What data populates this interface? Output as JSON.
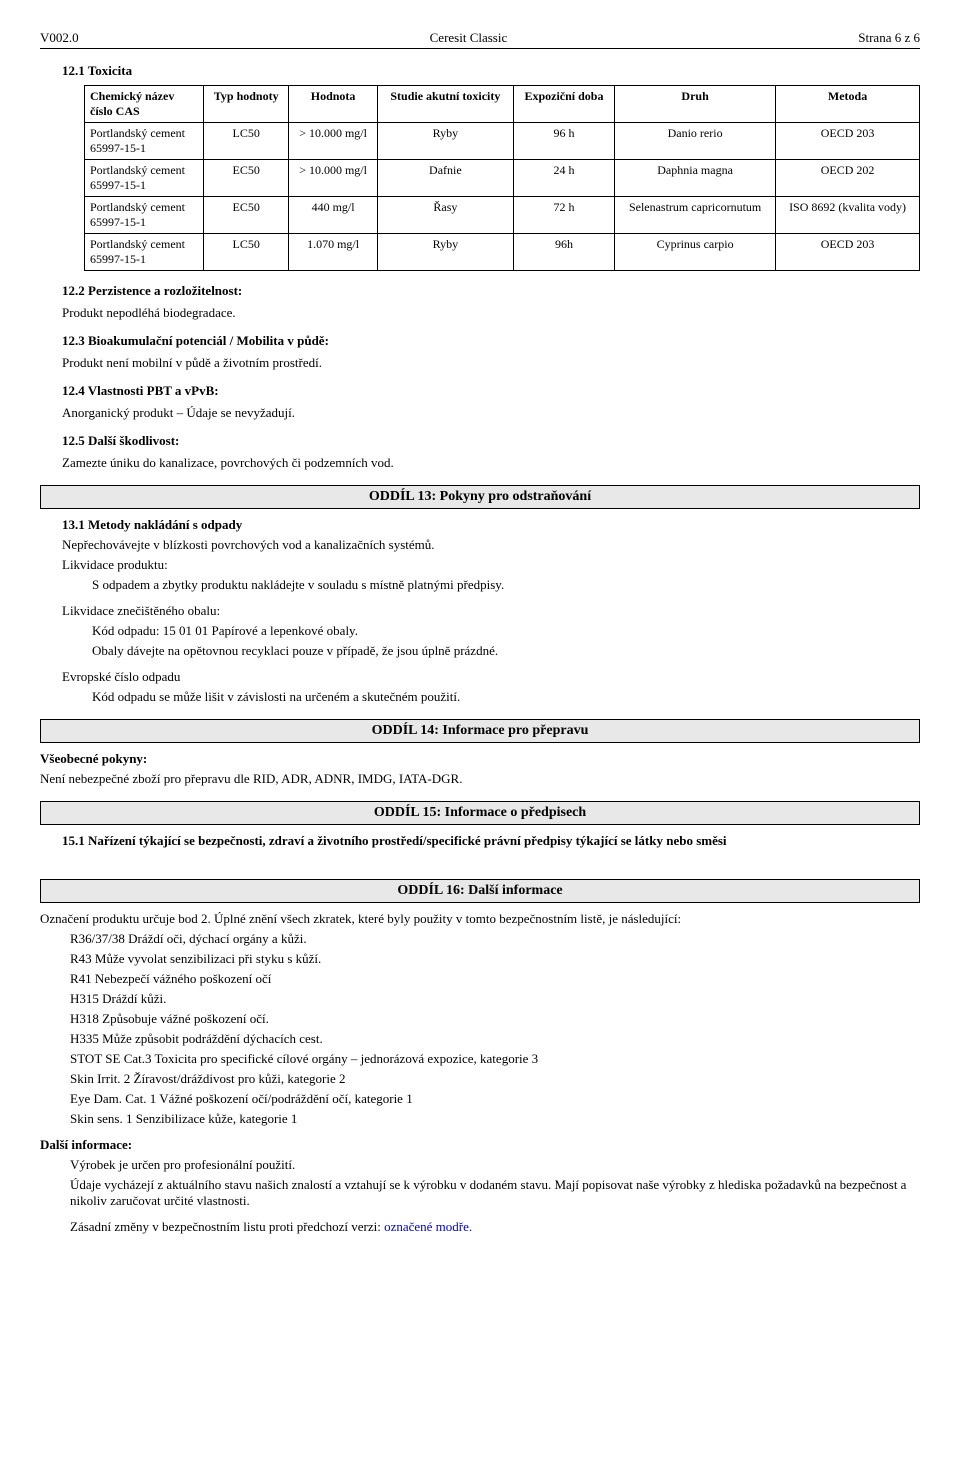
{
  "header": {
    "left": "V002.0",
    "center": "Ceresit Classic",
    "right": "Strana 6 z 6"
  },
  "section_12_1": {
    "title": "12.1 Toxicita",
    "table": {
      "columns": [
        "Chemický název\nčíslo CAS",
        "Typ hodnoty",
        "Hodnota",
        "Studie akutní toxicity",
        "Expoziční doba",
        "Druh",
        "Metoda"
      ],
      "rows": [
        {
          "name": "Portlandský cement\n65997-15-1",
          "type": "LC50",
          "value": "> 10.000 mg/l",
          "study": "Ryby",
          "exposure": "96 h",
          "species": "Danio rerio",
          "method": "OECD 203"
        },
        {
          "name": "Portlandský cement\n65997-15-1",
          "type": "EC50",
          "value": "> 10.000 mg/l",
          "study": "Dafnie",
          "exposure": "24 h",
          "species": "Daphnia magna",
          "method": "OECD 202"
        },
        {
          "name": "Portlandský cement\n65997-15-1",
          "type": "EC50",
          "value": "440 mg/l",
          "study": "Řasy",
          "exposure": "72 h",
          "species": "Selenastrum capricornutum",
          "method": "ISO 8692 (kvalita vody)"
        },
        {
          "name": "Portlandský cement\n65997-15-1",
          "type": "LC50",
          "value": "1.070 mg/l",
          "study": "Ryby",
          "exposure": "96h",
          "species": "Cyprinus carpio",
          "method": "OECD 203"
        }
      ]
    }
  },
  "section_12_2": {
    "title": "12.2 Perzistence a rozložitelnost:",
    "text": "Produkt nepodléhá biodegradace."
  },
  "section_12_3": {
    "title": "12.3 Bioakumulační potenciál / Mobilita v půdě:",
    "text": "Produkt není mobilní v půdě a životním prostředí."
  },
  "section_12_4": {
    "title": "12.4 Vlastnosti PBT a vPvB:",
    "text": "Anorganický produkt – Údaje se nevyžadují."
  },
  "section_12_5": {
    "title": "12.5 Další škodlivost:",
    "text": "Zamezte úniku do kanalizace, povrchových či podzemních vod."
  },
  "section_13": {
    "bar": "ODDÍL 13: Pokyny pro odstraňování",
    "title_13_1": "13.1 Metody nakládání s odpady",
    "p1": "Nepřechovávejte v blízkosti povrchových vod a kanalizačních systémů.",
    "p2_label": "Likvidace produktu:",
    "p2_text": "S odpadem a zbytky produktu nakládejte v souladu s místně platnými předpisy.",
    "p3_label": "Likvidace znečištěného obalu:",
    "p3_text1": "Kód odpadu: 15 01 01  Papírové a lepenkové obaly.",
    "p3_text2": "Obaly dávejte na opětovnou recyklaci  pouze v případě, že jsou úplně prázdné.",
    "p4_label": "Evropské číslo odpadu",
    "p4_text": "Kód odpadu se může lišit v závislosti na určeném a skutečném použití."
  },
  "section_14": {
    "bar": "ODDÍL 14: Informace pro přepravu",
    "label": "Všeobecné pokyny:",
    "text": "Není nebezpečné zboží pro přepravu dle RID, ADR, ADNR, IMDG, IATA-DGR."
  },
  "section_15": {
    "bar": "ODDÍL 15: Informace o předpisech",
    "title": "15.1 Nařízení týkající se bezpečnosti, zdraví a životního prostředí/specifické právní předpisy týkající se látky nebo směsi"
  },
  "section_16": {
    "bar": "ODDÍL 16: Další informace",
    "intro": "Označení produktu určuje bod 2. Úplné znění všech zkratek, které byly použity v tomto bezpečnostním listě, je následující:",
    "lines": [
      "R36/37/38 Dráždí oči, dýchací orgány a kůži.",
      "R43 Může vyvolat senzibilizaci při styku s kůží.",
      "R41 Nebezpečí vážného poškození očí",
      "H315 Dráždí kůži.",
      "H318 Způsobuje vážné poškození očí.",
      "H335 Může způsobit podráždění dýchacích cest.",
      "STOT SE Cat.3 Toxicita pro specifické cílové orgány – jednorázová expozice, kategorie 3",
      "Skin Irrit. 2  Žíravost/dráždivost pro kůži, kategorie 2",
      "Eye Dam. Cat. 1 Vážné poškození očí/podráždění očí, kategorie 1",
      "Skin sens. 1  Senzibilizace kůže, kategorie 1"
    ],
    "further_label": "Další informace:",
    "further_1": "Výrobek je určen pro profesionální použití.",
    "further_2": "Údaje vycházejí z aktuálního stavu našich znalostí a vztahují se k výrobku v dodaném stavu. Mají popisovat naše výrobky z hlediska požadavků na bezpečnost a nikoliv zaručovat určité vlastnosti.",
    "changes_prefix": "Zásadní změny v bezpečnostním listu proti předchozí verzi: ",
    "changes_blue": "označené modře."
  }
}
